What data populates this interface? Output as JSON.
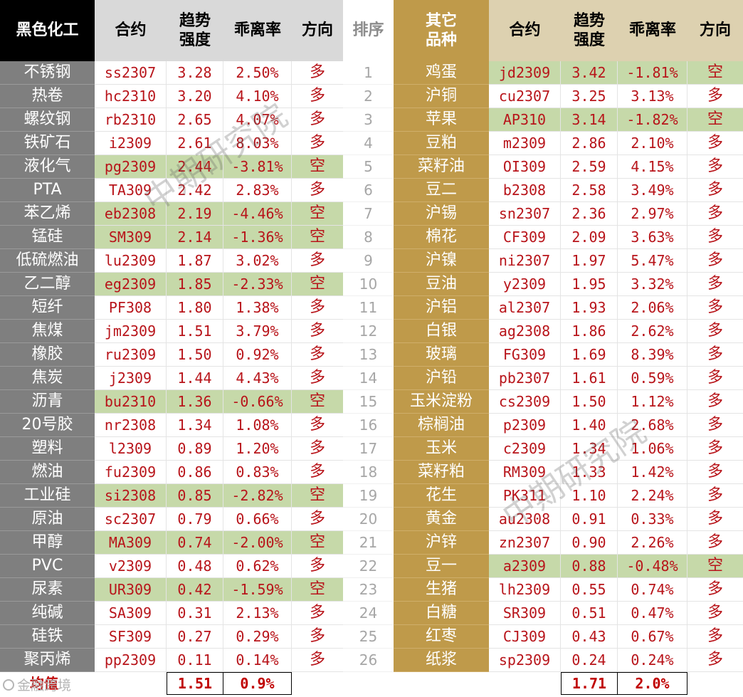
{
  "headers": {
    "left_group": "黑色化工",
    "contract": "合约",
    "strength": "趋势强度",
    "deviation": "乖离率",
    "direction": "方向",
    "rank": "排序",
    "right_group": "其它品种"
  },
  "rows": [
    {
      "rank": "1",
      "l_name": "不锈钢",
      "l_code": "ss2307",
      "l_str": "3.28",
      "l_dev": "2.50%",
      "l_dir": "多",
      "r_name": "鸡蛋",
      "r_code": "jd2309",
      "r_str": "3.42",
      "r_dev": "-1.81%",
      "r_dir": "空"
    },
    {
      "rank": "2",
      "l_name": "热卷",
      "l_code": "hc2310",
      "l_str": "3.20",
      "l_dev": "4.10%",
      "l_dir": "多",
      "r_name": "沪铜",
      "r_code": "cu2307",
      "r_str": "3.25",
      "r_dev": "3.13%",
      "r_dir": "多"
    },
    {
      "rank": "3",
      "l_name": "螺纹钢",
      "l_code": "rb2310",
      "l_str": "2.65",
      "l_dev": "4.07%",
      "l_dir": "多",
      "r_name": "苹果",
      "r_code": "AP310",
      "r_str": "3.14",
      "r_dev": "-1.82%",
      "r_dir": "空"
    },
    {
      "rank": "4",
      "l_name": "铁矿石",
      "l_code": "i2309",
      "l_str": "2.61",
      "l_dev": "8.03%",
      "l_dir": "多",
      "r_name": "豆粕",
      "r_code": "m2309",
      "r_str": "2.86",
      "r_dev": "2.10%",
      "r_dir": "多"
    },
    {
      "rank": "5",
      "l_name": "液化气",
      "l_code": "pg2309",
      "l_str": "2.44",
      "l_dev": "-3.81%",
      "l_dir": "空",
      "r_name": "菜籽油",
      "r_code": "OI309",
      "r_str": "2.59",
      "r_dev": "4.15%",
      "r_dir": "多"
    },
    {
      "rank": "6",
      "l_name": "PTA",
      "l_code": "TA309",
      "l_str": "2.42",
      "l_dev": "2.83%",
      "l_dir": "多",
      "r_name": "豆二",
      "r_code": "b2308",
      "r_str": "2.58",
      "r_dev": "3.49%",
      "r_dir": "多"
    },
    {
      "rank": "7",
      "l_name": "苯乙烯",
      "l_code": "eb2308",
      "l_str": "2.19",
      "l_dev": "-4.46%",
      "l_dir": "空",
      "r_name": "沪锡",
      "r_code": "sn2307",
      "r_str": "2.36",
      "r_dev": "2.97%",
      "r_dir": "多"
    },
    {
      "rank": "8",
      "l_name": "锰硅",
      "l_code": "SM309",
      "l_str": "2.14",
      "l_dev": "-1.36%",
      "l_dir": "空",
      "r_name": "棉花",
      "r_code": "CF309",
      "r_str": "2.09",
      "r_dev": "3.63%",
      "r_dir": "多"
    },
    {
      "rank": "9",
      "l_name": "低硫燃油",
      "l_code": "lu2309",
      "l_str": "1.87",
      "l_dev": "3.02%",
      "l_dir": "多",
      "r_name": "沪镍",
      "r_code": "ni2307",
      "r_str": "1.97",
      "r_dev": "5.47%",
      "r_dir": "多"
    },
    {
      "rank": "10",
      "l_name": "乙二醇",
      "l_code": "eg2309",
      "l_str": "1.85",
      "l_dev": "-2.33%",
      "l_dir": "空",
      "r_name": "豆油",
      "r_code": "y2309",
      "r_str": "1.95",
      "r_dev": "3.32%",
      "r_dir": "多"
    },
    {
      "rank": "11",
      "l_name": "短纤",
      "l_code": "PF308",
      "l_str": "1.80",
      "l_dev": "1.38%",
      "l_dir": "多",
      "r_name": "沪铝",
      "r_code": "al2307",
      "r_str": "1.93",
      "r_dev": "2.06%",
      "r_dir": "多"
    },
    {
      "rank": "12",
      "l_name": "焦煤",
      "l_code": "jm2309",
      "l_str": "1.51",
      "l_dev": "3.79%",
      "l_dir": "多",
      "r_name": "白银",
      "r_code": "ag2308",
      "r_str": "1.86",
      "r_dev": "2.62%",
      "r_dir": "多"
    },
    {
      "rank": "13",
      "l_name": "橡胶",
      "l_code": "ru2309",
      "l_str": "1.50",
      "l_dev": "0.92%",
      "l_dir": "多",
      "r_name": "玻璃",
      "r_code": "FG309",
      "r_str": "1.69",
      "r_dev": "8.39%",
      "r_dir": "多"
    },
    {
      "rank": "14",
      "l_name": "焦炭",
      "l_code": "j2309",
      "l_str": "1.44",
      "l_dev": "4.43%",
      "l_dir": "多",
      "r_name": "沪铅",
      "r_code": "pb2307",
      "r_str": "1.61",
      "r_dev": "0.59%",
      "r_dir": "多"
    },
    {
      "rank": "15",
      "l_name": "沥青",
      "l_code": "bu2310",
      "l_str": "1.36",
      "l_dev": "-0.66%",
      "l_dir": "空",
      "r_name": "玉米淀粉",
      "r_code": "cs2309",
      "r_str": "1.50",
      "r_dev": "1.12%",
      "r_dir": "多"
    },
    {
      "rank": "16",
      "l_name": "20号胶",
      "l_code": "nr2308",
      "l_str": "1.34",
      "l_dev": "1.08%",
      "l_dir": "多",
      "r_name": "棕榈油",
      "r_code": "p2309",
      "r_str": "1.40",
      "r_dev": "2.68%",
      "r_dir": "多"
    },
    {
      "rank": "17",
      "l_name": "塑料",
      "l_code": "l2309",
      "l_str": "0.89",
      "l_dev": "1.20%",
      "l_dir": "多",
      "r_name": "玉米",
      "r_code": "c2309",
      "r_str": "1.34",
      "r_dev": "1.06%",
      "r_dir": "多"
    },
    {
      "rank": "18",
      "l_name": "燃油",
      "l_code": "fu2309",
      "l_str": "0.86",
      "l_dev": "0.83%",
      "l_dir": "多",
      "r_name": "菜籽粕",
      "r_code": "RM309",
      "r_str": "1.33",
      "r_dev": "1.42%",
      "r_dir": "多"
    },
    {
      "rank": "19",
      "l_name": "工业硅",
      "l_code": "si2308",
      "l_str": "0.85",
      "l_dev": "-2.82%",
      "l_dir": "空",
      "r_name": "花生",
      "r_code": "PK311",
      "r_str": "1.10",
      "r_dev": "2.24%",
      "r_dir": "多"
    },
    {
      "rank": "20",
      "l_name": "原油",
      "l_code": "sc2307",
      "l_str": "0.79",
      "l_dev": "0.66%",
      "l_dir": "多",
      "r_name": "黄金",
      "r_code": "au2308",
      "r_str": "0.91",
      "r_dev": "0.33%",
      "r_dir": "多"
    },
    {
      "rank": "21",
      "l_name": "甲醇",
      "l_code": "MA309",
      "l_str": "0.74",
      "l_dev": "-2.00%",
      "l_dir": "空",
      "r_name": "沪锌",
      "r_code": "zn2307",
      "r_str": "0.90",
      "r_dev": "2.26%",
      "r_dir": "多"
    },
    {
      "rank": "22",
      "l_name": "PVC",
      "l_code": "v2309",
      "l_str": "0.48",
      "l_dev": "0.62%",
      "l_dir": "多",
      "r_name": "豆一",
      "r_code": "a2309",
      "r_str": "0.88",
      "r_dev": "-0.48%",
      "r_dir": "空"
    },
    {
      "rank": "23",
      "l_name": "尿素",
      "l_code": "UR309",
      "l_str": "0.42",
      "l_dev": "-1.59%",
      "l_dir": "空",
      "r_name": "生猪",
      "r_code": "lh2309",
      "r_str": "0.55",
      "r_dev": "0.74%",
      "r_dir": "多"
    },
    {
      "rank": "24",
      "l_name": "纯碱",
      "l_code": "SA309",
      "l_str": "0.31",
      "l_dev": "2.13%",
      "l_dir": "多",
      "r_name": "白糖",
      "r_code": "SR309",
      "r_str": "0.51",
      "r_dev": "0.47%",
      "r_dir": "多"
    },
    {
      "rank": "25",
      "l_name": "硅铁",
      "l_code": "SF309",
      "l_str": "0.27",
      "l_dev": "0.29%",
      "l_dir": "多",
      "r_name": "红枣",
      "r_code": "CJ309",
      "r_str": "0.43",
      "r_dev": "0.67%",
      "r_dir": "多"
    },
    {
      "rank": "26",
      "l_name": "聚丙烯",
      "l_code": "pp2309",
      "l_str": "0.11",
      "l_dev": "0.14%",
      "l_dir": "多",
      "r_name": "纸浆",
      "r_code": "sp2309",
      "r_str": "0.24",
      "r_dev": "0.24%",
      "r_dir": "多"
    }
  ],
  "average": {
    "label": "均值",
    "left_strength": "1.51",
    "left_deviation": "0.9%",
    "right_strength": "1.71",
    "right_deviation": "2.0%"
  },
  "watermarks": {
    "text1": "中期研究院",
    "text2": "中期研究院",
    "source": "金融跨境"
  },
  "colors": {
    "up_text": "#b8141a",
    "short_highlight": "#c6d9a9",
    "left_group_bg": "#7f7f7f",
    "right_group_bg": "#bf9a4a"
  }
}
